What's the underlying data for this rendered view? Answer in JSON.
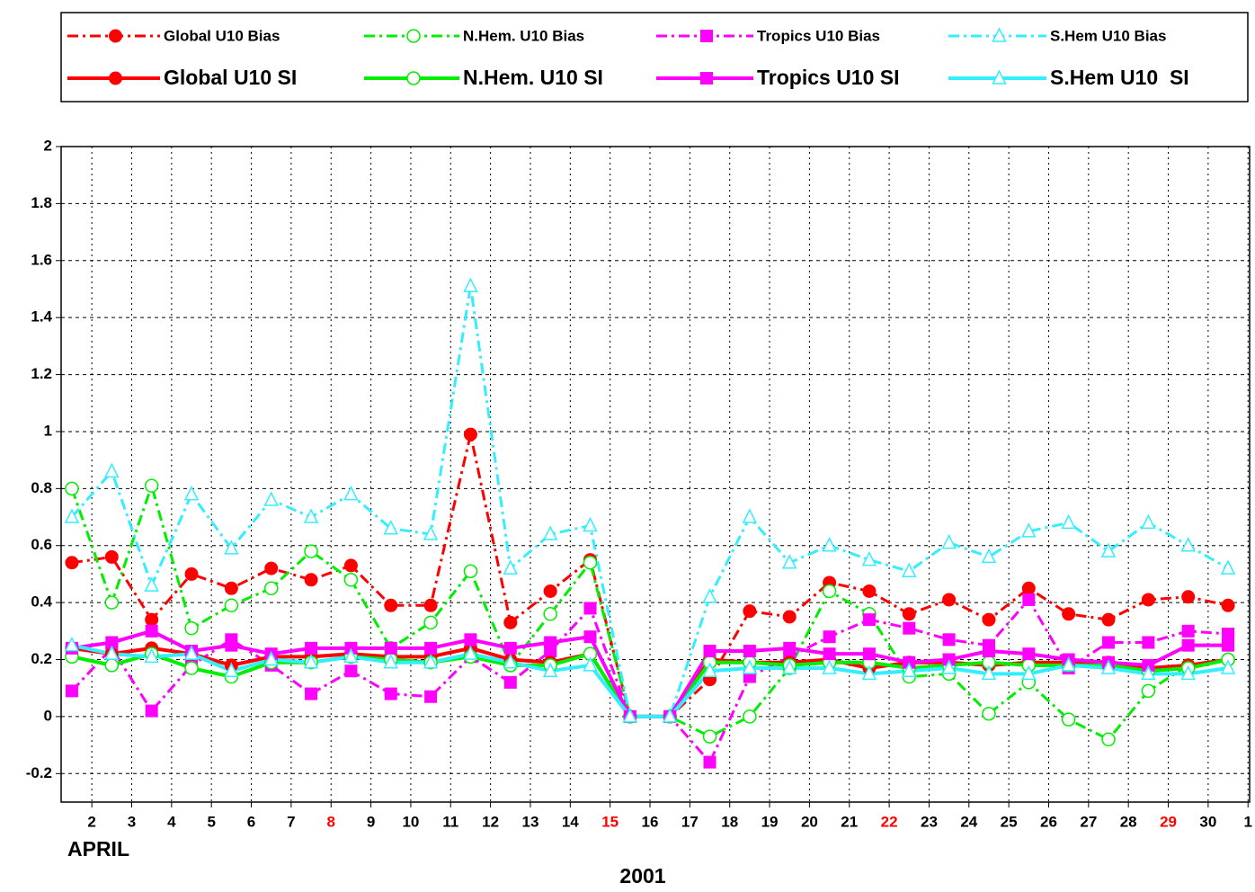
{
  "chart_data": {
    "type": "line",
    "x_label_left": "APRIL",
    "x_label": "2001",
    "x": [
      1.5,
      2.5,
      3.5,
      4.5,
      5.5,
      6.5,
      7.5,
      8.5,
      9.5,
      10.5,
      11.5,
      12.5,
      13.5,
      14.5,
      15.5,
      16.5,
      17.5,
      18.5,
      19.5,
      20.5,
      21.5,
      22.5,
      23.5,
      24.5,
      25.5,
      26.5,
      27.5,
      28.5,
      29.5,
      30.5
    ],
    "xlim": [
      1.23,
      31.04
    ],
    "xticks": [
      2,
      3,
      4,
      5,
      6,
      7,
      8,
      9,
      10,
      11,
      12,
      13,
      14,
      15,
      16,
      17,
      18,
      19,
      20,
      21,
      22,
      23,
      24,
      25,
      26,
      27,
      28,
      29,
      30,
      {
        "value": 31,
        "label": "1"
      }
    ],
    "xtick_colors": [
      "#000000",
      "#000000",
      "#000000",
      "#000000",
      "#000000",
      "#000000",
      "#ff0000",
      "#000000",
      "#000000",
      "#000000",
      "#000000",
      "#000000",
      "#000000",
      "#ff0000",
      "#000000",
      "#000000",
      "#000000",
      "#000000",
      "#000000",
      "#000000",
      "#ff0000",
      "#000000",
      "#000000",
      "#000000",
      "#000000",
      "#000000",
      "#000000",
      "#ff0000",
      "#000000",
      "#000000"
    ],
    "ylim": [
      -0.3,
      2
    ],
    "yticks": [
      -0.2,
      0,
      0.2,
      0.4,
      0.6,
      0.8,
      1,
      1.2,
      1.4,
      1.6,
      1.8,
      2
    ],
    "grid": true,
    "legend": "top",
    "series": [
      {
        "name": "Global U10 Bias",
        "color": "#ff0000",
        "style": "dashdot",
        "marker": "circle",
        "values": [
          0.54,
          0.56,
          0.34,
          0.5,
          0.45,
          0.52,
          0.48,
          0.53,
          0.39,
          0.39,
          0.99,
          0.33,
          0.44,
          0.55,
          0,
          0,
          0.13,
          0.37,
          0.35,
          0.47,
          0.44,
          0.36,
          0.41,
          0.34,
          0.45,
          0.36,
          0.34,
          0.41,
          0.42,
          0.39
        ]
      },
      {
        "name": "N.Hem. U10 Bias",
        "color": "#00ee00",
        "style": "dashdot",
        "marker": "circle-open",
        "values": [
          0.8,
          0.4,
          0.81,
          0.31,
          0.39,
          0.45,
          0.58,
          0.48,
          0.24,
          0.33,
          0.51,
          0.18,
          0.36,
          0.54,
          0,
          0,
          -0.07,
          0.0,
          0.17,
          0.44,
          0.36,
          0.14,
          0.15,
          0.01,
          0.12,
          -0.01,
          -0.08,
          0.09,
          0.18,
          0.2
        ]
      },
      {
        "name": "Tropics U10 Bias",
        "color": "#ff00ff",
        "style": "dashdot",
        "marker": "square",
        "values": [
          0.09,
          0.24,
          0.02,
          0.18,
          0.27,
          0.18,
          0.08,
          0.16,
          0.08,
          0.07,
          0.21,
          0.12,
          0.23,
          0.38,
          0,
          0,
          -0.16,
          0.14,
          0.21,
          0.28,
          0.34,
          0.31,
          0.27,
          0.25,
          0.41,
          0.17,
          0.26,
          0.26,
          0.3,
          0.29
        ]
      },
      {
        "name": "S.Hem U10 Bias",
        "color": "#33eeff",
        "style": "dashdot",
        "marker": "triangle-open",
        "values": [
          0.7,
          0.86,
          0.46,
          0.78,
          0.59,
          0.76,
          0.7,
          0.78,
          0.66,
          0.64,
          1.51,
          0.52,
          0.64,
          0.67,
          0,
          0,
          0.42,
          0.7,
          0.54,
          0.6,
          0.55,
          0.51,
          0.61,
          0.56,
          0.65,
          0.68,
          0.58,
          0.68,
          0.6,
          0.52
        ]
      },
      {
        "name": "Global U10 SI",
        "color": "#ff0000",
        "style": "solid",
        "marker": "circle",
        "values": [
          0.24,
          0.22,
          0.24,
          0.22,
          0.18,
          0.21,
          0.21,
          0.22,
          0.21,
          0.21,
          0.24,
          0.2,
          0.19,
          0.22,
          0,
          0,
          0.2,
          0.19,
          0.19,
          0.2,
          0.17,
          0.19,
          0.19,
          0.18,
          0.19,
          0.19,
          0.19,
          0.17,
          0.18,
          0.2
        ]
      },
      {
        "name": "N.Hem. U10 SI",
        "color": "#00ee00",
        "style": "solid",
        "marker": "circle-open",
        "values": [
          0.21,
          0.18,
          0.22,
          0.17,
          0.14,
          0.19,
          0.19,
          0.21,
          0.2,
          0.19,
          0.21,
          0.18,
          0.18,
          0.22,
          0,
          0,
          0.19,
          0.19,
          0.18,
          0.19,
          0.19,
          0.17,
          0.18,
          0.19,
          0.18,
          0.18,
          0.18,
          0.16,
          0.17,
          0.2
        ]
      },
      {
        "name": "Tropics U10 SI",
        "color": "#ff00ff",
        "style": "solid",
        "marker": "square",
        "values": [
          0.24,
          0.26,
          0.3,
          0.23,
          0.25,
          0.22,
          0.24,
          0.24,
          0.24,
          0.24,
          0.27,
          0.24,
          0.26,
          0.28,
          0,
          0,
          0.23,
          0.23,
          0.24,
          0.22,
          0.22,
          0.19,
          0.2,
          0.23,
          0.22,
          0.2,
          0.19,
          0.18,
          0.25,
          0.25
        ]
      },
      {
        "name": "S.Hem U10  SI",
        "color": "#33eeff",
        "style": "solid",
        "marker": "triangle-open",
        "values": [
          0.25,
          0.22,
          0.21,
          0.22,
          0.16,
          0.2,
          0.19,
          0.21,
          0.19,
          0.19,
          0.22,
          0.19,
          0.16,
          0.18,
          0,
          0,
          0.16,
          0.17,
          0.17,
          0.17,
          0.15,
          0.16,
          0.17,
          0.15,
          0.15,
          0.18,
          0.17,
          0.15,
          0.15,
          0.17
        ]
      }
    ]
  }
}
